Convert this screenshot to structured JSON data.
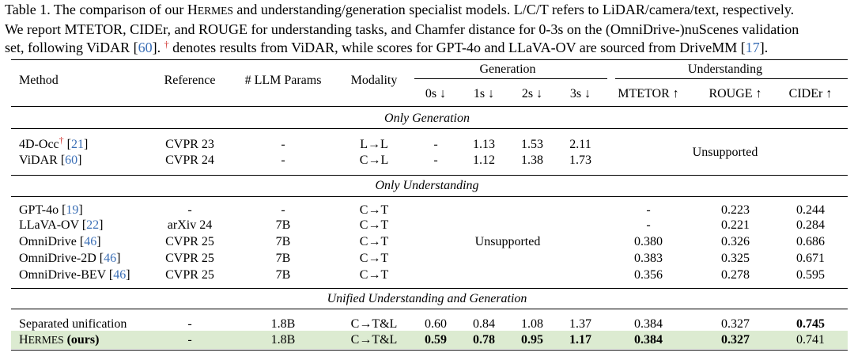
{
  "caption": {
    "lines": [
      [
        {
          "t": "Table 1. The comparison of our "
        },
        {
          "t": "H",
          "k": "plain"
        },
        {
          "t": "ERMES",
          "k": "sc"
        },
        {
          "t": " and understanding/generation specialist models. L/C/T refers to LiDAR/camera/text, respectively."
        }
      ],
      [
        {
          "t": "We report MTETOR, CIDEr, and ROUGE for understanding tasks, and Chamfer distance for 0-3s on the (OmniDrive-)nuScenes validation"
        }
      ],
      [
        {
          "t": "set, following ViDAR ["
        },
        {
          "t": "60",
          "k": "cite"
        },
        {
          "t": "]. "
        },
        {
          "t": "†",
          "k": "dagger"
        },
        {
          "t": " denotes results from ViDAR, while scores for GPT-4o and LLaVA-OV are sourced from DriveMM ["
        },
        {
          "t": "17",
          "k": "cite"
        },
        {
          "t": "]."
        }
      ]
    ]
  },
  "header": {
    "method": "Method",
    "reference": "Reference",
    "params": "# LLM Params",
    "modality": "Modality",
    "generation": "Generation",
    "understanding": "Understanding",
    "gen_cols": [
      "0s ↓",
      "1s ↓",
      "2s ↓",
      "3s ↓"
    ],
    "und_cols": [
      "MTETOR ↑",
      "ROUGE ↑",
      "CIDEr ↑"
    ]
  },
  "sections": {
    "only_generation": "Only Generation",
    "only_understanding": "Only Understanding",
    "unified": "Unified Understanding and Generation"
  },
  "unsupported_label": "Unsupported",
  "generation_rows": [
    {
      "method": "4D-Occ",
      "dagger": "†",
      "cite": "21",
      "reference": "CVPR 23",
      "params": "-",
      "modality": "L→L",
      "gen": [
        "-",
        "1.13",
        "1.53",
        "2.11"
      ]
    },
    {
      "method": "ViDAR",
      "dagger": "",
      "cite": "60",
      "reference": "CVPR 24",
      "params": "-",
      "modality": "C→L",
      "gen": [
        "-",
        "1.12",
        "1.38",
        "1.73"
      ]
    }
  ],
  "understanding_rows": [
    {
      "method": "GPT-4o",
      "cite": "19",
      "reference": "-",
      "params": "-",
      "modality": "C→T",
      "und": [
        "-",
        "0.223",
        "0.244"
      ]
    },
    {
      "method": "LLaVA-OV",
      "cite": "22",
      "reference": "arXiv 24",
      "params": "7B",
      "modality": "C→T",
      "und": [
        "-",
        "0.221",
        "0.284"
      ]
    },
    {
      "method": "OmniDrive",
      "cite": "46",
      "reference": "CVPR 25",
      "params": "7B",
      "modality": "C→T",
      "und": [
        "0.380",
        "0.326",
        "0.686"
      ]
    },
    {
      "method": "OmniDrive-2D",
      "cite": "46",
      "reference": "CVPR 25",
      "params": "7B",
      "modality": "C→T",
      "und": [
        "0.383",
        "0.325",
        "0.671"
      ]
    },
    {
      "method": "OmniDrive-BEV",
      "cite": "46",
      "reference": "CVPR 25",
      "params": "7B",
      "modality": "C→T",
      "und": [
        "0.356",
        "0.278",
        "0.595"
      ]
    }
  ],
  "unified_rows": [
    {
      "method": "Separated unification",
      "reference": "-",
      "params": "1.8B",
      "modality": "C→T&L",
      "gen": [
        "0.60",
        "0.84",
        "1.08",
        "1.37"
      ],
      "und": [
        "0.384",
        "0.327",
        "0.745"
      ],
      "bold_und": [
        false,
        false,
        true
      ],
      "bold_gen": [
        false,
        false,
        false,
        false
      ]
    },
    {
      "method_h": "H",
      "method_sc": "ERMES",
      "method_suffix": " (ours)",
      "reference": "-",
      "params": "1.8B",
      "modality": "C→T&L",
      "gen": [
        "0.59",
        "0.78",
        "0.95",
        "1.17"
      ],
      "und": [
        "0.384",
        "0.327",
        "0.741"
      ],
      "bold_und": [
        true,
        true,
        false
      ],
      "bold_gen": [
        true,
        true,
        true,
        true
      ]
    }
  ],
  "colors": {
    "cite": "#3b6fb6",
    "dagger": "#d0312d",
    "highlight": "#dcebd1"
  }
}
